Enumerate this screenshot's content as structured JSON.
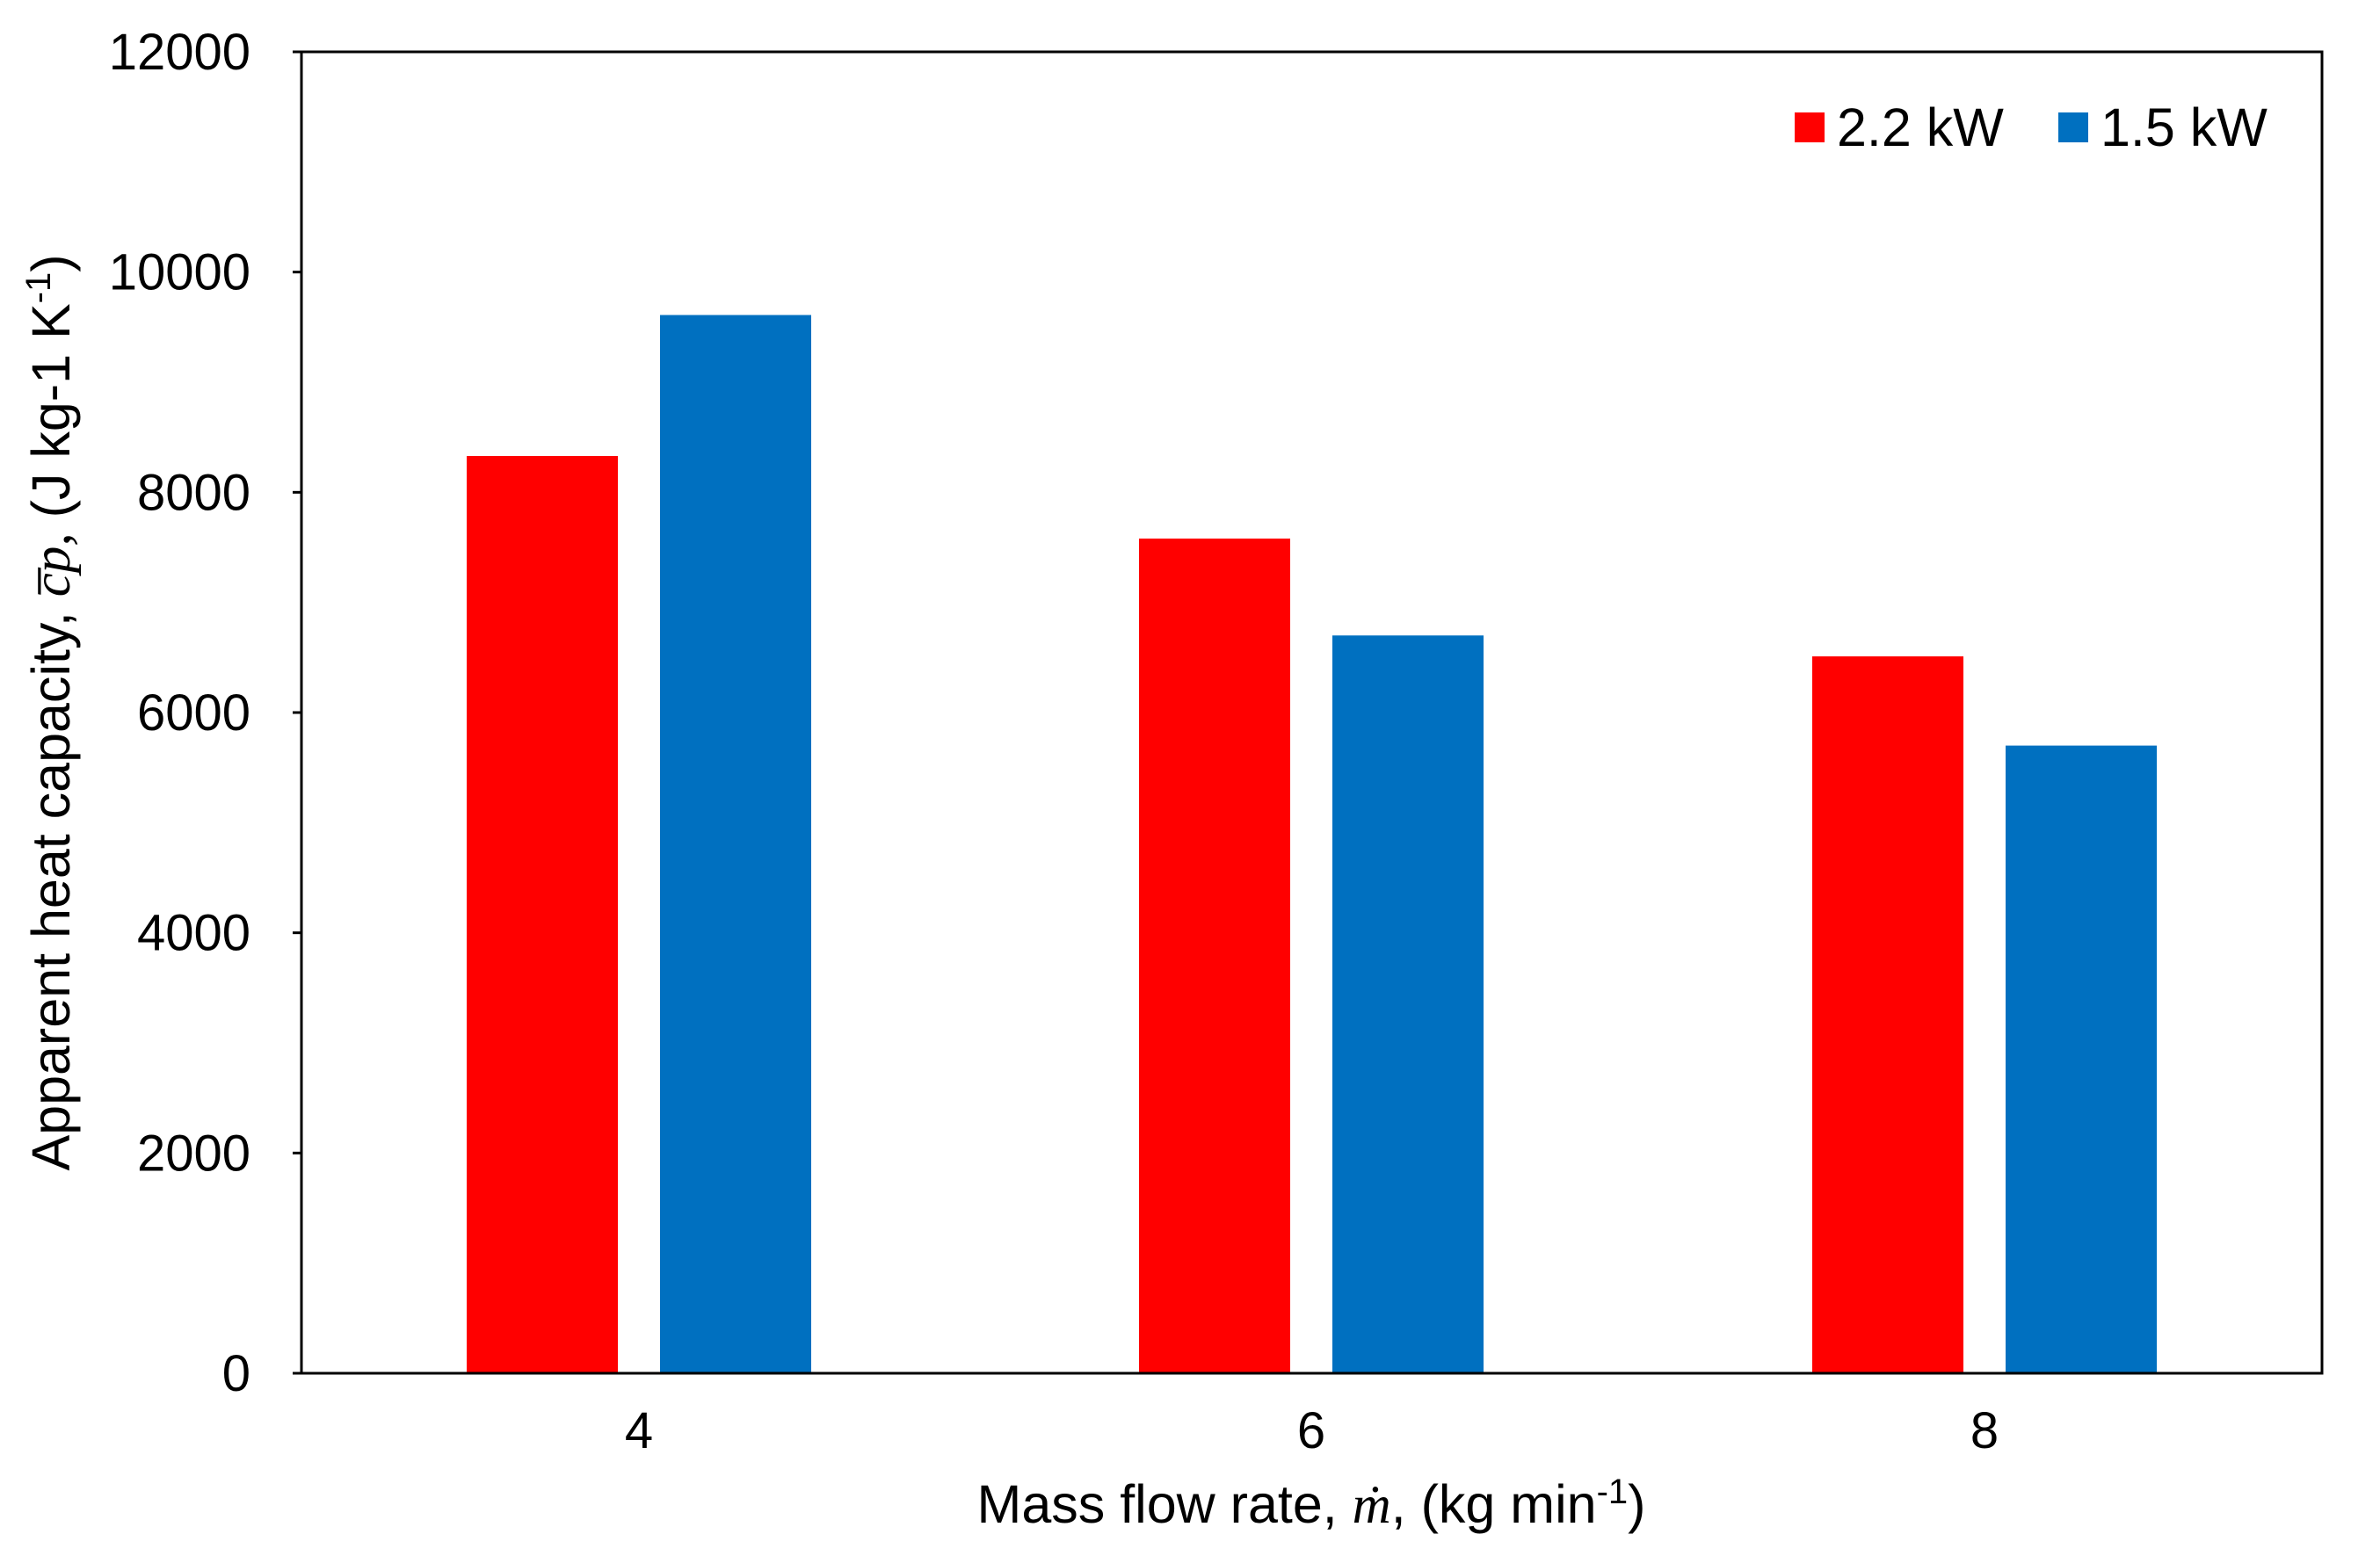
{
  "chart_data": {
    "type": "bar",
    "categories": [
      "4",
      "6",
      "8"
    ],
    "series": [
      {
        "name": "2.2 kW",
        "color": "#ff0000",
        "values": [
          8330,
          7580,
          6510
        ]
      },
      {
        "name": "1.5 kW",
        "color": "#0070c0",
        "values": [
          9610,
          6700,
          5700
        ]
      }
    ],
    "ylim": [
      0,
      12000
    ],
    "yticks": [
      0,
      2000,
      4000,
      6000,
      8000,
      10000,
      12000
    ],
    "ytick_labels": [
      "0",
      "2000",
      "4000",
      "6000",
      "8000",
      "10000",
      "12000"
    ],
    "xlabel": {
      "prefix": "Mass flow rate, ",
      "symbol": "ṁ",
      "middle": ", (kg min",
      "exponent": "-1",
      "suffix": ")"
    },
    "ylabel": {
      "prefix": "Apparent heat capacity, ",
      "symbol": "c̅p,",
      "middle": " (J kg-1 K",
      "exponent": "-1",
      "suffix": ")"
    },
    "legend_position": "top-right",
    "grid": false
  }
}
